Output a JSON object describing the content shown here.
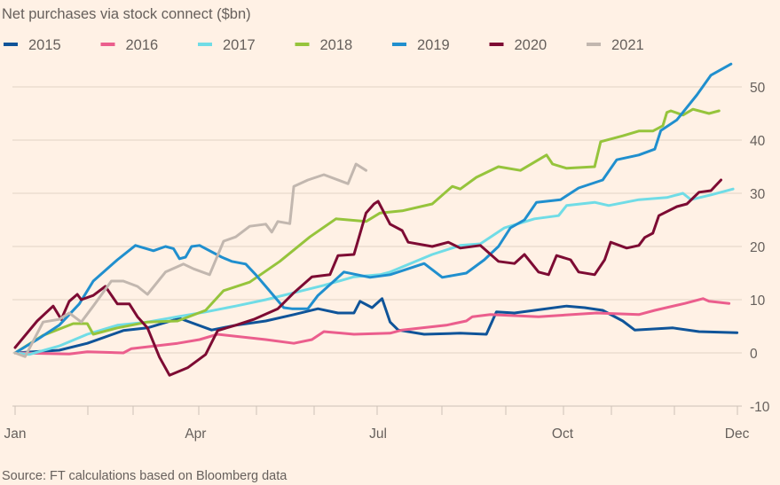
{
  "chart_data": {
    "type": "line",
    "title": "Net purchases via stock connect ($bn)",
    "source": "Source: FT calculations based on Bloomberg data",
    "xlabel": "",
    "ylabel": "",
    "x_ticks": [
      "Jan",
      "Apr",
      "Jul",
      "Oct",
      "Dec"
    ],
    "y_ticks": [
      "50",
      "40",
      "30",
      "20",
      "10",
      "0",
      "-10"
    ],
    "ylim": [
      -10,
      55
    ],
    "grid": true,
    "legend_position": "top",
    "y_axis_side": "right",
    "series": [
      {
        "name": "2015",
        "color": "#0f5499",
        "points": [
          [
            "01-01",
            0
          ],
          [
            "01-23",
            0.5
          ],
          [
            "02-06",
            1.8
          ],
          [
            "02-24",
            4.2
          ],
          [
            "03-08",
            4.7
          ],
          [
            "03-24",
            6.5
          ],
          [
            "04-09",
            4.3
          ],
          [
            "04-21",
            5.2
          ],
          [
            "05-06",
            6
          ],
          [
            "05-20",
            7.2
          ],
          [
            "06-01",
            8.3
          ],
          [
            "06-11",
            7.5
          ],
          [
            "06-19",
            7.5
          ],
          [
            "06-22",
            9.7
          ],
          [
            "06-28",
            8.5
          ],
          [
            "07-03",
            10.2
          ],
          [
            "07-07",
            5.8
          ],
          [
            "07-11",
            4.3
          ],
          [
            "07-24",
            3.5
          ],
          [
            "08-11",
            3.7
          ],
          [
            "08-24",
            3.5
          ],
          [
            "08-29",
            7.7
          ],
          [
            "09-07",
            7.5
          ],
          [
            "09-17",
            8
          ],
          [
            "10-03",
            8.8
          ],
          [
            "10-12",
            8.5
          ],
          [
            "10-21",
            8
          ],
          [
            "10-31",
            6
          ],
          [
            "11-06",
            4.3
          ],
          [
            "11-25",
            4.7
          ],
          [
            "12-08",
            4
          ],
          [
            "12-27",
            3.8
          ]
        ]
      },
      {
        "name": "2016",
        "color": "#eb5e8d",
        "points": [
          [
            "01-01",
            0
          ],
          [
            "01-28",
            -0.2
          ],
          [
            "02-06",
            0.2
          ],
          [
            "02-24",
            0
          ],
          [
            "02-28",
            0.8
          ],
          [
            "03-23",
            1.8
          ],
          [
            "04-03",
            2.5
          ],
          [
            "04-12",
            3.5
          ],
          [
            "05-06",
            2.5
          ],
          [
            "05-20",
            1.8
          ],
          [
            "05-29",
            2.5
          ],
          [
            "06-04",
            4
          ],
          [
            "06-19",
            3.5
          ],
          [
            "07-07",
            3.7
          ],
          [
            "07-13",
            4.3
          ],
          [
            "08-04",
            5.2
          ],
          [
            "08-14",
            6
          ],
          [
            "08-17",
            6.8
          ],
          [
            "08-26",
            7.2
          ],
          [
            "09-19",
            6.8
          ],
          [
            "10-18",
            7.5
          ],
          [
            "11-08",
            7.2
          ],
          [
            "11-16",
            8
          ],
          [
            "12-01",
            9.3
          ],
          [
            "12-10",
            10.2
          ],
          [
            "12-13",
            9.7
          ],
          [
            "12-23",
            9.3
          ]
        ]
      },
      {
        "name": "2017",
        "color": "#70dce6",
        "points": [
          [
            "01-01",
            0
          ],
          [
            "01-08",
            -0.3
          ],
          [
            "01-23",
            1.3
          ],
          [
            "02-06",
            3.5
          ],
          [
            "02-21",
            5.2
          ],
          [
            "03-08",
            5.8
          ],
          [
            "03-23",
            6.8
          ],
          [
            "04-06",
            7.7
          ],
          [
            "04-21",
            8.8
          ],
          [
            "05-06",
            10
          ],
          [
            "05-20",
            11.3
          ],
          [
            "06-04",
            12.7
          ],
          [
            "06-19",
            14.3
          ],
          [
            "07-02",
            14.7
          ],
          [
            "07-07",
            15.2
          ],
          [
            "07-28",
            18.5
          ],
          [
            "08-11",
            20.2
          ],
          [
            "08-21",
            20.5
          ],
          [
            "09-02",
            23.5
          ],
          [
            "09-17",
            25.2
          ],
          [
            "09-29",
            25.8
          ],
          [
            "10-03",
            27.7
          ],
          [
            "10-17",
            28.3
          ],
          [
            "10-24",
            27.7
          ],
          [
            "11-08",
            28.8
          ],
          [
            "11-22",
            29.2
          ],
          [
            "11-30",
            30
          ],
          [
            "12-04",
            28.8
          ],
          [
            "12-14",
            29.7
          ],
          [
            "12-25",
            30.8
          ]
        ]
      },
      {
        "name": "2018",
        "color": "#96c43c",
        "points": [
          [
            "01-01",
            0
          ],
          [
            "01-15",
            3.3
          ],
          [
            "01-30",
            5.5
          ],
          [
            "02-06",
            5.5
          ],
          [
            "02-09",
            3.5
          ],
          [
            "02-21",
            4.7
          ],
          [
            "03-08",
            5.8
          ],
          [
            "03-23",
            6
          ],
          [
            "04-06",
            8
          ],
          [
            "04-15",
            11.7
          ],
          [
            "04-28",
            13.3
          ],
          [
            "05-13",
            17.2
          ],
          [
            "05-28",
            21.8
          ],
          [
            "06-10",
            25.2
          ],
          [
            "06-25",
            24.7
          ],
          [
            "07-02",
            26.3
          ],
          [
            "07-13",
            26.7
          ],
          [
            "07-28",
            28
          ],
          [
            "08-07",
            31.3
          ],
          [
            "08-11",
            30.8
          ],
          [
            "08-19",
            33
          ],
          [
            "08-30",
            35
          ],
          [
            "09-10",
            34.3
          ],
          [
            "09-23",
            37.2
          ],
          [
            "09-26",
            35.5
          ],
          [
            "10-03",
            34.7
          ],
          [
            "10-17",
            35
          ],
          [
            "10-20",
            39.7
          ],
          [
            "10-31",
            40.8
          ],
          [
            "11-08",
            41.7
          ],
          [
            "11-15",
            41.7
          ],
          [
            "11-20",
            42.7
          ],
          [
            "11-22",
            45.2
          ],
          [
            "11-24",
            45.5
          ],
          [
            "11-30",
            44.7
          ],
          [
            "12-05",
            45.8
          ],
          [
            "12-13",
            45
          ],
          [
            "12-18",
            45.5
          ]
        ]
      },
      {
        "name": "2019",
        "color": "#208fce",
        "points": [
          [
            "01-01",
            0
          ],
          [
            "01-12",
            2.5
          ],
          [
            "01-23",
            5.2
          ],
          [
            "02-02",
            9.2
          ],
          [
            "02-09",
            13.5
          ],
          [
            "02-21",
            17.5
          ],
          [
            "03-02",
            20.2
          ],
          [
            "03-11",
            19.2
          ],
          [
            "03-17",
            20
          ],
          [
            "03-21",
            19.6
          ],
          [
            "03-24",
            17.7
          ],
          [
            "03-27",
            18
          ],
          [
            "03-30",
            20
          ],
          [
            "04-03",
            20.2
          ],
          [
            "04-14",
            18
          ],
          [
            "04-19",
            17.2
          ],
          [
            "04-26",
            16.7
          ],
          [
            "05-01",
            14.7
          ],
          [
            "05-06",
            12.5
          ],
          [
            "05-15",
            8.5
          ],
          [
            "05-19",
            8.3
          ],
          [
            "05-27",
            8.3
          ],
          [
            "06-01",
            10.8
          ],
          [
            "06-14",
            15.2
          ],
          [
            "06-27",
            14.2
          ],
          [
            "07-07",
            14.7
          ],
          [
            "07-24",
            16.8
          ],
          [
            "08-02",
            14.2
          ],
          [
            "08-14",
            15
          ],
          [
            "08-23",
            17.5
          ],
          [
            "08-30",
            20
          ],
          [
            "09-05",
            23.5
          ],
          [
            "09-12",
            25
          ],
          [
            "09-18",
            28.3
          ],
          [
            "09-30",
            28.8
          ],
          [
            "10-09",
            31
          ],
          [
            "10-21",
            32.5
          ],
          [
            "10-28",
            36.3
          ],
          [
            "11-08",
            37.2
          ],
          [
            "11-16",
            38.3
          ],
          [
            "11-19",
            41.8
          ],
          [
            "11-27",
            43.8
          ],
          [
            "12-07",
            48.5
          ],
          [
            "12-14",
            52.2
          ],
          [
            "12-24",
            54.3
          ]
        ]
      },
      {
        "name": "2020",
        "color": "#7d0b33",
        "points": [
          [
            "01-01",
            1
          ],
          [
            "01-12",
            6
          ],
          [
            "01-20",
            8.8
          ],
          [
            "01-24",
            6.3
          ],
          [
            "01-28",
            9.7
          ],
          [
            "02-01",
            11
          ],
          [
            "02-03",
            10
          ],
          [
            "02-09",
            10.8
          ],
          [
            "02-15",
            12.5
          ],
          [
            "02-21",
            9.2
          ],
          [
            "02-27",
            9.2
          ],
          [
            "03-03",
            6.8
          ],
          [
            "03-08",
            4.7
          ],
          [
            "03-14",
            -0.8
          ],
          [
            "03-19",
            -4.2
          ],
          [
            "03-28",
            -2.8
          ],
          [
            "04-06",
            -0.3
          ],
          [
            "04-12",
            4.2
          ],
          [
            "04-21",
            5.2
          ],
          [
            "04-30",
            6.3
          ],
          [
            "05-12",
            8.3
          ],
          [
            "05-20",
            11.3
          ],
          [
            "05-29",
            14.3
          ],
          [
            "06-07",
            14.7
          ],
          [
            "06-11",
            18.3
          ],
          [
            "06-19",
            18.5
          ],
          [
            "06-25",
            26.3
          ],
          [
            "06-29",
            28
          ],
          [
            "07-01",
            28.5
          ],
          [
            "07-07",
            24.2
          ],
          [
            "07-13",
            23
          ],
          [
            "07-16",
            20.8
          ],
          [
            "07-28",
            20
          ],
          [
            "08-05",
            20.8
          ],
          [
            "08-11",
            19.7
          ],
          [
            "08-21",
            20.2
          ],
          [
            "08-30",
            17.2
          ],
          [
            "09-07",
            16.8
          ],
          [
            "09-12",
            18.5
          ],
          [
            "09-19",
            15.2
          ],
          [
            "09-24",
            14.7
          ],
          [
            "09-28",
            18.3
          ],
          [
            "10-05",
            17.5
          ],
          [
            "10-09",
            15.2
          ],
          [
            "10-17",
            14.7
          ],
          [
            "10-22",
            17.5
          ],
          [
            "10-25",
            20.8
          ],
          [
            "11-02",
            19.7
          ],
          [
            "11-08",
            20.2
          ],
          [
            "11-11",
            21.7
          ],
          [
            "11-15",
            22.5
          ],
          [
            "11-18",
            25.8
          ],
          [
            "11-27",
            27.5
          ],
          [
            "12-02",
            28
          ],
          [
            "12-08",
            30.2
          ],
          [
            "12-14",
            30.5
          ],
          [
            "12-19",
            32.5
          ]
        ]
      },
      {
        "name": "2021",
        "color": "#c2b7af",
        "points": [
          [
            "01-01",
            0
          ],
          [
            "01-06",
            -0.7
          ],
          [
            "01-15",
            5.8
          ],
          [
            "01-23",
            6.3
          ],
          [
            "01-28",
            7.5
          ],
          [
            "02-03",
            5.8
          ],
          [
            "02-09",
            8.8
          ],
          [
            "02-18",
            13.5
          ],
          [
            "02-24",
            13.5
          ],
          [
            "03-03",
            12.5
          ],
          [
            "03-08",
            11
          ],
          [
            "03-17",
            15.2
          ],
          [
            "03-26",
            16.7
          ],
          [
            "03-31",
            15.8
          ],
          [
            "04-08",
            14.7
          ],
          [
            "04-15",
            21
          ],
          [
            "04-21",
            21.8
          ],
          [
            "04-28",
            23.8
          ],
          [
            "05-06",
            24.2
          ],
          [
            "05-09",
            22.7
          ],
          [
            "05-12",
            24.7
          ],
          [
            "05-18",
            24.3
          ],
          [
            "05-20",
            31.3
          ],
          [
            "05-27",
            32.5
          ],
          [
            "06-04",
            33.5
          ],
          [
            "06-16",
            31.8
          ],
          [
            "06-20",
            35.5
          ],
          [
            "06-25",
            34.3
          ]
        ]
      }
    ]
  }
}
